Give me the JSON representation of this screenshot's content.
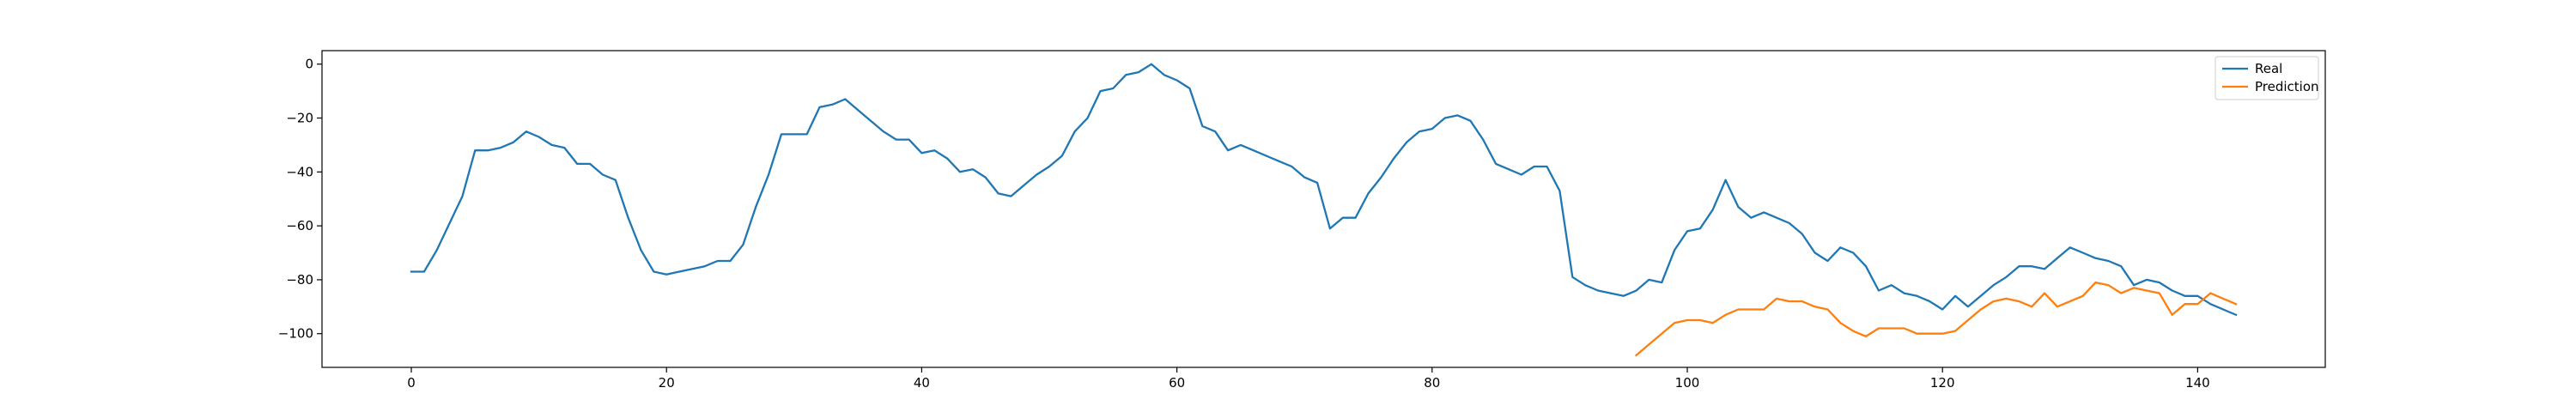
{
  "chart_data": {
    "type": "line",
    "xlim": [
      -7,
      150
    ],
    "ylim": [
      -112.5,
      5
    ],
    "x_ticks": [
      0,
      20,
      40,
      60,
      80,
      100,
      120,
      140
    ],
    "y_ticks": [
      0,
      -20,
      -40,
      -60,
      -80,
      -100
    ],
    "legend_position": "top-right",
    "grid": false,
    "series": [
      {
        "name": "Real",
        "color": "#1f77b4",
        "x_start": 0,
        "values": [
          -77,
          -77,
          -69,
          -59,
          -49,
          -32,
          -32,
          -31,
          -29,
          -25,
          -27,
          -30,
          -31,
          -37,
          -37,
          -41,
          -43,
          -57,
          -69,
          -77,
          -78,
          -77,
          -76,
          -75,
          -73,
          -73,
          -67,
          -53,
          -41,
          -26,
          -26,
          -26,
          -16,
          -15,
          -13,
          -17,
          -21,
          -25,
          -28,
          -28,
          -33,
          -32,
          -35,
          -40,
          -39,
          -42,
          -48,
          -49,
          -45,
          -41,
          -38,
          -34,
          -25,
          -20,
          -10,
          -9,
          -4,
          -3,
          0,
          -4,
          -6,
          -9,
          -23,
          -25,
          -32,
          -30,
          -32,
          -34,
          -36,
          -38,
          -42,
          -44,
          -61,
          -57,
          -57,
          -48,
          -42,
          -35,
          -29,
          -25,
          -24,
          -20,
          -19,
          -21,
          -28,
          -37,
          -39,
          -41,
          -38,
          -38,
          -47,
          -79,
          -82,
          -84,
          -85,
          -86,
          -84,
          -80,
          -81,
          -69,
          -62,
          -61,
          -54,
          -43,
          -53,
          -57,
          -55,
          -57,
          -59,
          -63,
          -70,
          -73,
          -68,
          -70,
          -75,
          -84,
          -82,
          -85,
          -86,
          -88,
          -91,
          -86,
          -90,
          -86,
          -82,
          -79,
          -75,
          -75,
          -76,
          -72,
          -68,
          -70,
          -72,
          -73,
          -75,
          -82,
          -80,
          -81,
          -84,
          -86,
          -86,
          -89,
          -91,
          -93
        ]
      },
      {
        "name": "Prediction",
        "color": "#ff7f0e",
        "x_start": 96,
        "values": [
          -108,
          -104,
          -100,
          -96,
          -95,
          -95,
          -96,
          -93,
          -91,
          -91,
          -91,
          -87,
          -88,
          -88,
          -90,
          -91,
          -96,
          -99,
          -101,
          -98,
          -98,
          -98,
          -100,
          -100,
          -100,
          -99,
          -95,
          -91,
          -88,
          -87,
          -88,
          -90,
          -85,
          -90,
          -88,
          -86,
          -81,
          -82,
          -85,
          -83,
          -84,
          -85,
          -93,
          -89,
          -89,
          -85,
          -87,
          -89
        ]
      }
    ]
  }
}
